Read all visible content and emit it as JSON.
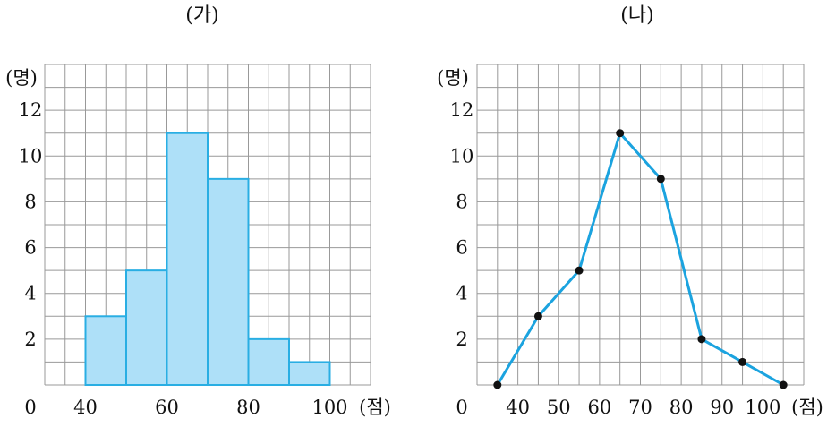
{
  "colors": {
    "bar_fill": "#aee0f8",
    "bar_stroke": "#29aee3",
    "line": "#1ba3df",
    "point": "#111111",
    "grid": "#999999"
  },
  "chart_data": [
    {
      "type": "bar",
      "title": "(가)",
      "xlabel": "(점)",
      "ylabel": "(명)",
      "x_origin_label": "0",
      "y_ticks": [
        "2",
        "4",
        "6",
        "8",
        "10",
        "12"
      ],
      "x_ticks": [
        "40",
        "60",
        "80",
        "100"
      ],
      "bins": [
        [
          40,
          50
        ],
        [
          50,
          60
        ],
        [
          60,
          70
        ],
        [
          70,
          80
        ],
        [
          80,
          90
        ],
        [
          90,
          100
        ]
      ],
      "values": [
        3,
        5,
        11,
        9,
        2,
        1
      ],
      "xlim": [
        30,
        110
      ],
      "ylim": [
        0,
        14
      ],
      "grid": true
    },
    {
      "type": "line",
      "title": "(나)",
      "xlabel": "(점)",
      "ylabel": "(명)",
      "x_origin_label": "0",
      "y_ticks": [
        "2",
        "4",
        "6",
        "8",
        "10",
        "12"
      ],
      "x_ticks": [
        "40",
        "50",
        "60",
        "70",
        "80",
        "90",
        "100"
      ],
      "x": [
        35,
        45,
        55,
        65,
        75,
        85,
        95,
        105
      ],
      "values": [
        0,
        3,
        5,
        11,
        9,
        2,
        1,
        0
      ],
      "xlim": [
        30,
        110
      ],
      "ylim": [
        0,
        14
      ],
      "grid": true
    }
  ]
}
